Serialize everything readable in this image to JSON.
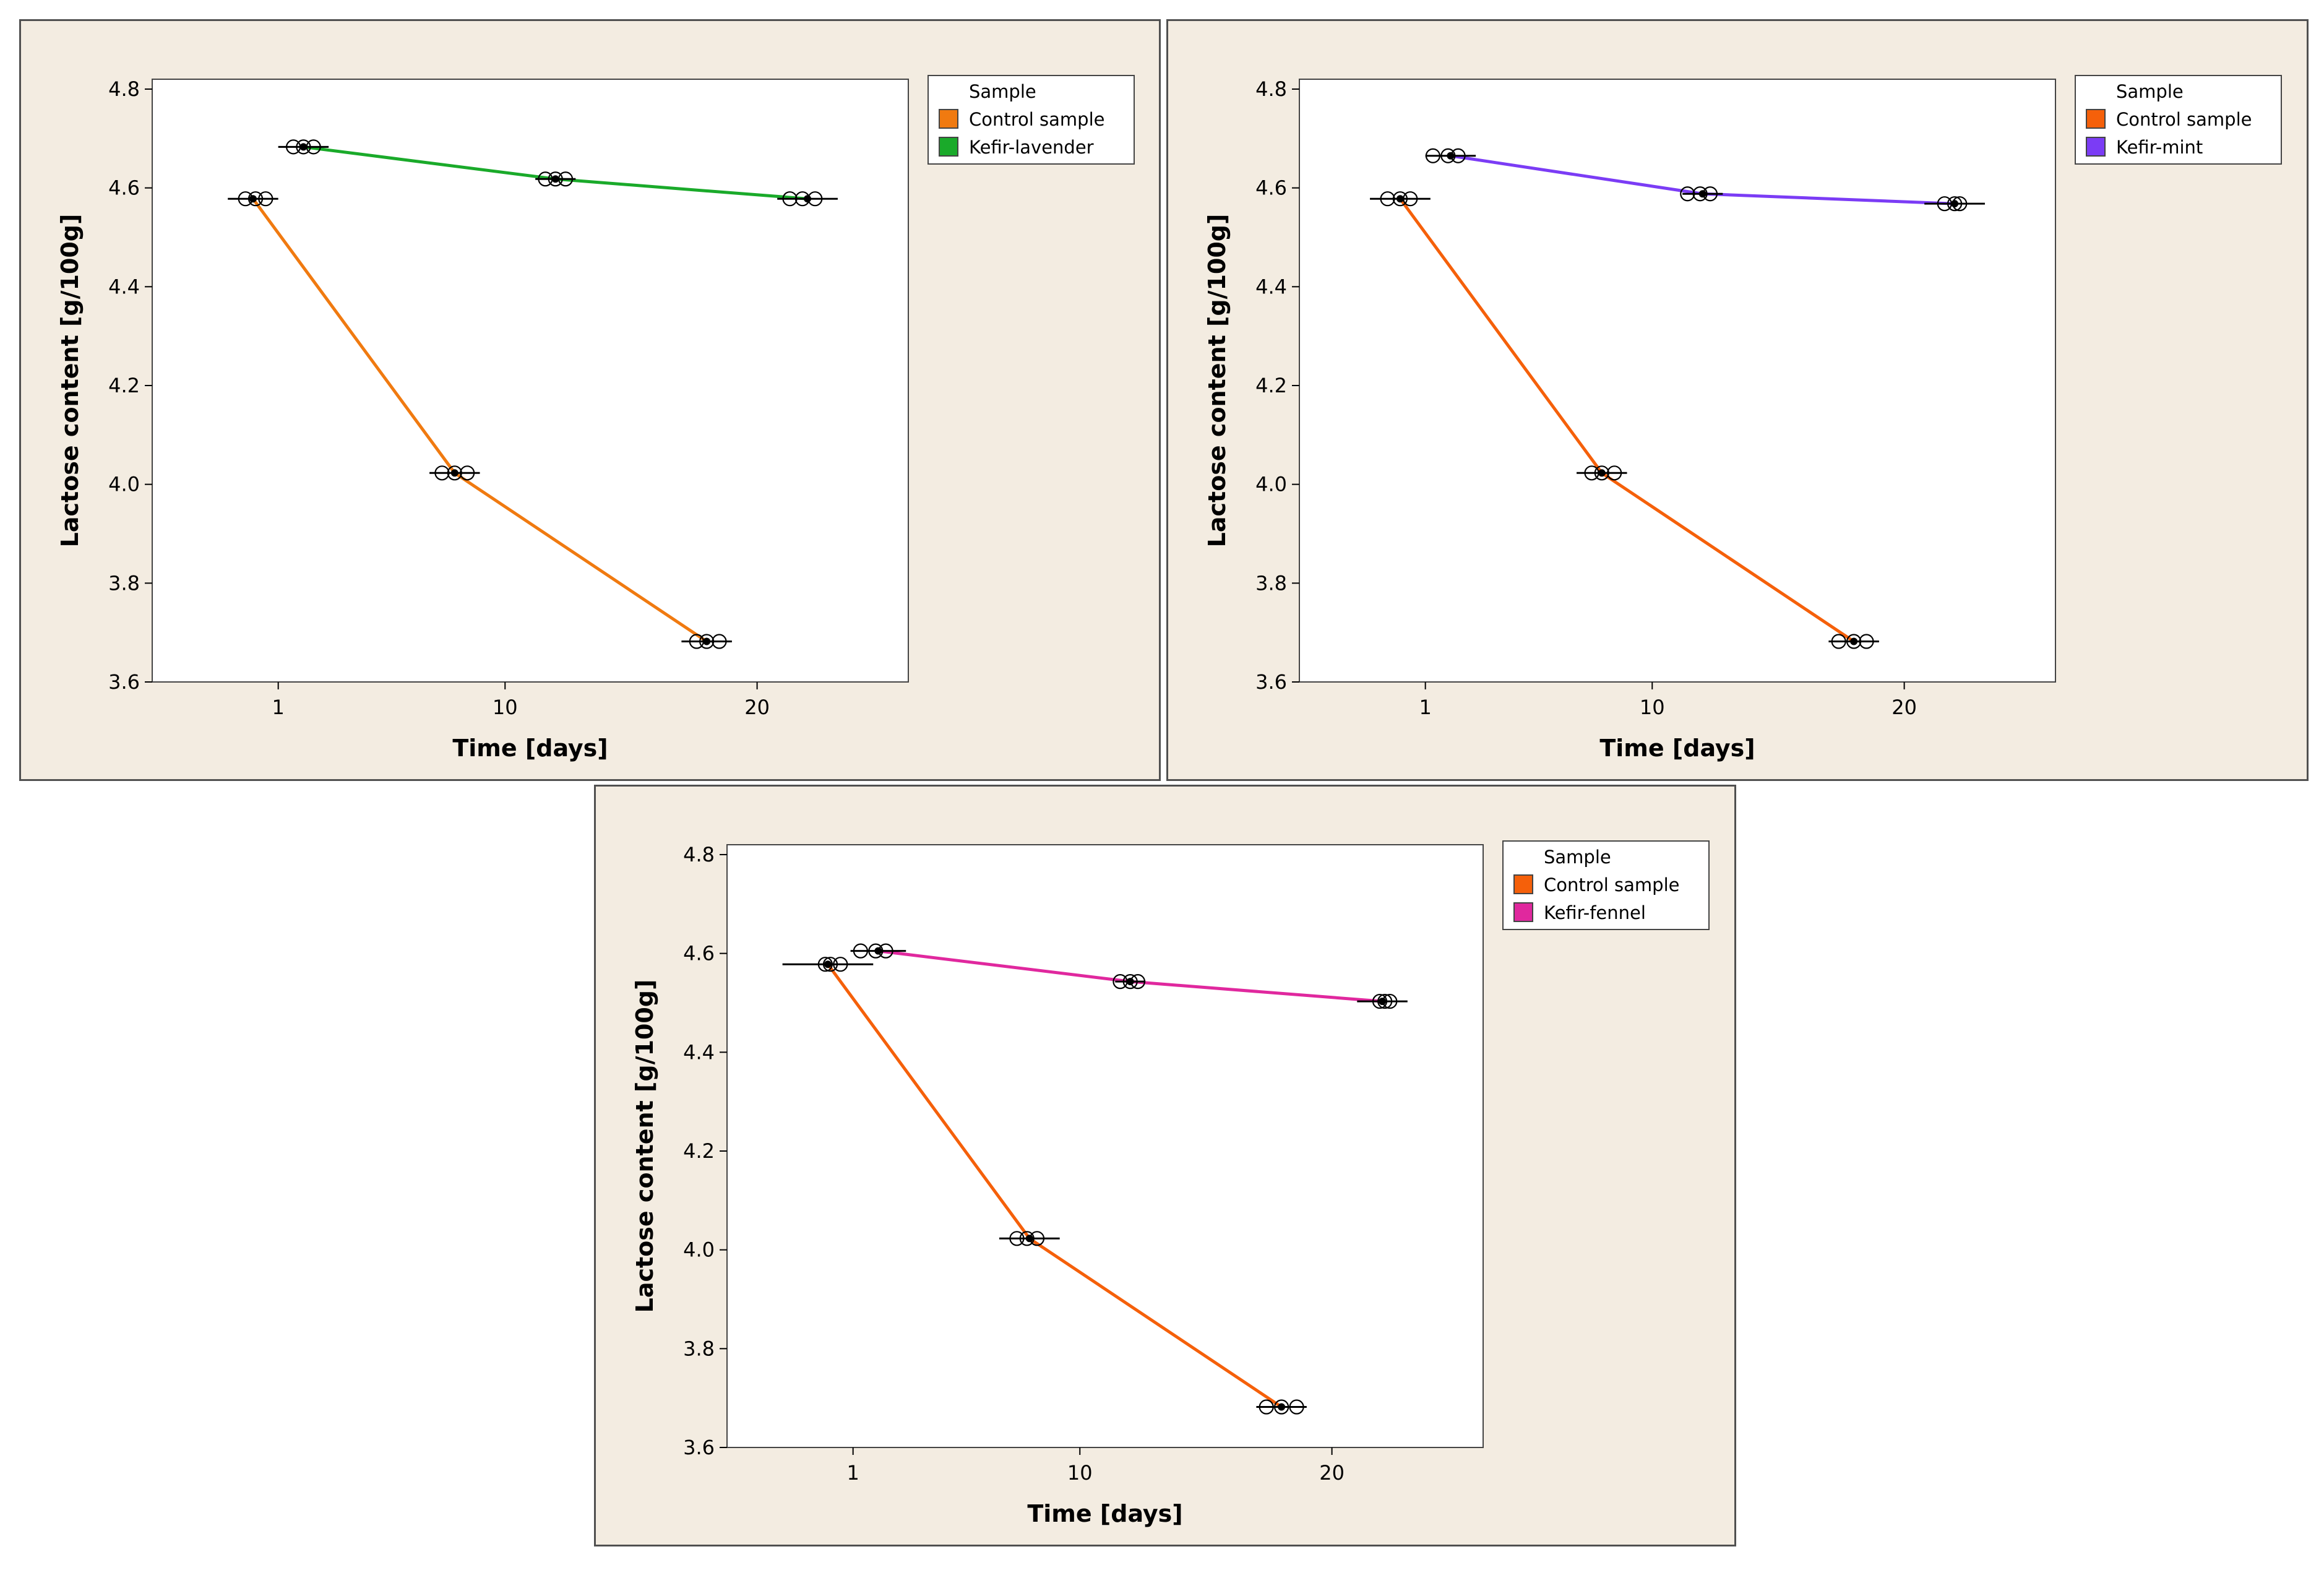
{
  "chart_data": [
    {
      "type": "line",
      "xlabel": "Time [days]",
      "ylabel": "Lactose content [g/100g]",
      "x_ticks": [
        1,
        10,
        20
      ],
      "y_ticks": [
        "3.6",
        "3.8",
        "4.0",
        "4.2",
        "4.4",
        "4.6",
        "4.8"
      ],
      "xlim": [
        -4,
        26
      ],
      "ylim": [
        3.6,
        4.82
      ],
      "legend": {
        "title": "Sample",
        "position": "top-right"
      },
      "series": [
        {
          "name": "Control sample",
          "color": "#f07a10",
          "x": [
            0,
            8,
            18
          ],
          "y": [
            4.578,
            4.023,
            3.682
          ],
          "replicates": [
            [
              -0.3,
              0.1,
              0.5
            ],
            [
              7.5,
              8.0,
              8.5
            ],
            [
              17.6,
              18.0,
              18.5
            ]
          ],
          "error": [
            1.0,
            1.0,
            1.0
          ]
        },
        {
          "name": "Kefir-lavender",
          "color": "#1aaa2a",
          "x": [
            2,
            12,
            22
          ],
          "y": [
            4.683,
            4.618,
            4.578
          ],
          "replicates": [
            [
              1.6,
              2.0,
              2.4
            ],
            [
              11.6,
              12.0,
              12.4
            ],
            [
              21.3,
              21.8,
              22.3
            ]
          ],
          "error": [
            1.0,
            0.8,
            1.2
          ]
        }
      ]
    },
    {
      "type": "line",
      "xlabel": "Time [days]",
      "ylabel": "Lactose content [g/100g]",
      "x_ticks": [
        1,
        10,
        20
      ],
      "y_ticks": [
        "3.6",
        "3.8",
        "4.0",
        "4.2",
        "4.4",
        "4.6",
        "4.8"
      ],
      "xlim": [
        -4,
        26
      ],
      "ylim": [
        3.6,
        4.82
      ],
      "legend": {
        "title": "Sample",
        "position": "top-right"
      },
      "series": [
        {
          "name": "Control sample",
          "color": "#f5600a",
          "x": [
            0,
            8,
            18
          ],
          "y": [
            4.578,
            4.023,
            3.682
          ],
          "replicates": [
            [
              -0.5,
              0.0,
              0.4
            ],
            [
              7.6,
              8.0,
              8.5
            ],
            [
              17.4,
              18.0,
              18.5
            ]
          ],
          "error": [
            1.2,
            1.0,
            1.0
          ]
        },
        {
          "name": "Kefir-mint",
          "color": "#7b3cf5",
          "x": [
            2,
            12,
            22
          ],
          "y": [
            4.665,
            4.588,
            4.568
          ],
          "replicates": [
            [
              1.3,
              1.9,
              2.3
            ],
            [
              11.4,
              11.9,
              12.3
            ],
            [
              21.6,
              22.0,
              22.2
            ]
          ],
          "error": [
            1.0,
            0.8,
            1.2
          ]
        }
      ]
    },
    {
      "type": "line",
      "xlabel": "Time [days]",
      "ylabel": "Lactose content [g/100g]",
      "x_ticks": [
        1,
        10,
        20
      ],
      "y_ticks": [
        "3.6",
        "3.8",
        "4.0",
        "4.2",
        "4.4",
        "4.6",
        "4.8"
      ],
      "xlim": [
        -4,
        26
      ],
      "ylim": [
        3.6,
        4.82
      ],
      "legend": {
        "title": "Sample",
        "position": "top-right"
      },
      "series": [
        {
          "name": "Control sample",
          "color": "#f5600a",
          "x": [
            0,
            8,
            18
          ],
          "y": [
            4.578,
            4.023,
            3.682
          ],
          "replicates": [
            [
              -0.1,
              0.1,
              0.5
            ],
            [
              7.5,
              7.9,
              8.3
            ],
            [
              17.4,
              18.0,
              18.6
            ]
          ],
          "error": [
            1.8,
            1.2,
            1.0
          ]
        },
        {
          "name": "Kefir-fennel",
          "color": "#e0289e",
          "x": [
            2,
            12,
            22
          ],
          "y": [
            4.605,
            4.543,
            4.503
          ],
          "replicates": [
            [
              1.3,
              1.9,
              2.3
            ],
            [
              11.6,
              12.0,
              12.3
            ],
            [
              21.9,
              22.1,
              22.3
            ]
          ],
          "error": [
            1.1,
            0.6,
            1.0
          ]
        }
      ]
    }
  ]
}
